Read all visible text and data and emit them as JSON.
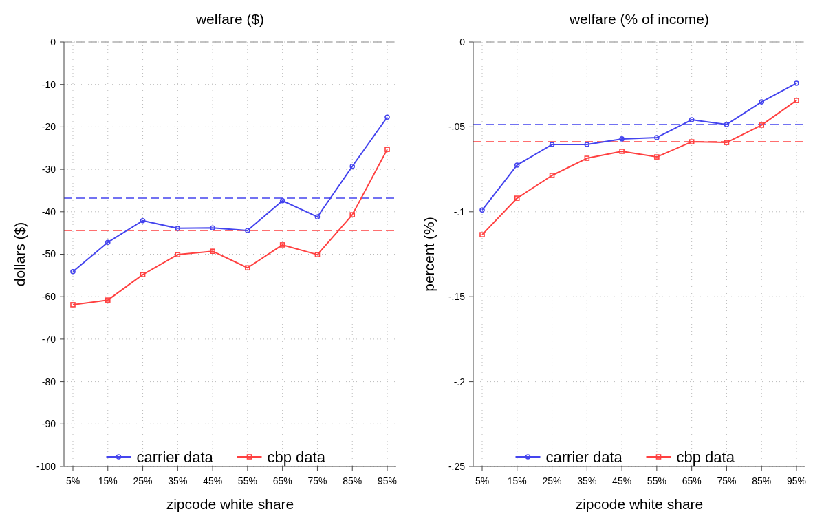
{
  "chart_data": [
    {
      "type": "line",
      "title": "welfare ($)",
      "xlabel": "zipcode white share",
      "ylabel": "dollars ($)",
      "categories": [
        "5%",
        "15%",
        "25%",
        "35%",
        "45%",
        "55%",
        "65%",
        "75%",
        "85%",
        "95%"
      ],
      "series": [
        {
          "name": "carrier data",
          "color": "#4444ee",
          "marker": "circle",
          "values": [
            -54.1,
            -47.2,
            -42.1,
            -43.9,
            -43.8,
            -44.4,
            -37.4,
            -41.2,
            -29.3,
            -17.7
          ]
        },
        {
          "name": "cbp data",
          "color": "#ff4040",
          "marker": "square",
          "values": [
            -61.9,
            -60.8,
            -54.8,
            -50.1,
            -49.3,
            -53.2,
            -47.8,
            -50.1,
            -40.7,
            -25.3
          ]
        }
      ],
      "ylim": [
        -100,
        0
      ],
      "yticks": [
        -100,
        -90,
        -80,
        -70,
        -60,
        -50,
        -40,
        -30,
        -20,
        -10,
        0
      ],
      "ref_lines": [
        {
          "axis": "y",
          "value": 0,
          "color": "#b0b0b0",
          "line_style": "dashed"
        },
        {
          "axis": "y",
          "value": -36.8,
          "color": "#4444ee",
          "line_style": "dashed"
        },
        {
          "axis": "y",
          "value": -44.4,
          "color": "#ff4040",
          "line_style": "dashed"
        }
      ],
      "grid": true,
      "legend": "bottom",
      "line_style": "solid"
    },
    {
      "type": "line",
      "title": "welfare (% of income)",
      "xlabel": "zipcode white share",
      "ylabel": "percent (%)",
      "categories": [
        "5%",
        "15%",
        "25%",
        "35%",
        "45%",
        "55%",
        "65%",
        "75%",
        "85%",
        "95%"
      ],
      "series": [
        {
          "name": "carrier data",
          "color": "#4444ee",
          "marker": "circle",
          "values": [
            -0.099,
            -0.0725,
            -0.0604,
            -0.0604,
            -0.0571,
            -0.0563,
            -0.0458,
            -0.0486,
            -0.0353,
            -0.0243
          ]
        },
        {
          "name": "cbp data",
          "color": "#ff4040",
          "marker": "square",
          "values": [
            -0.1135,
            -0.092,
            -0.0786,
            -0.0685,
            -0.0644,
            -0.0677,
            -0.0588,
            -0.0592,
            -0.049,
            -0.0344
          ]
        }
      ],
      "ylim": [
        -0.25,
        0
      ],
      "yticks": [
        {
          "value": -0.25,
          "label": "-.25"
        },
        {
          "value": -0.2,
          "label": "-.2"
        },
        {
          "value": -0.15,
          "label": "-.15"
        },
        {
          "value": -0.1,
          "label": "-.1"
        },
        {
          "value": -0.05,
          "label": "-.05"
        },
        0
      ],
      "ref_lines": [
        {
          "axis": "y",
          "value": 0,
          "color": "#b0b0b0",
          "line_style": "dashed"
        },
        {
          "axis": "y",
          "value": -0.0486,
          "color": "#4444ee",
          "line_style": "dashed"
        },
        {
          "axis": "y",
          "value": -0.0588,
          "color": "#ff4040",
          "line_style": "dashed"
        }
      ],
      "grid": true,
      "legend": "bottom",
      "line_style": "solid"
    }
  ]
}
